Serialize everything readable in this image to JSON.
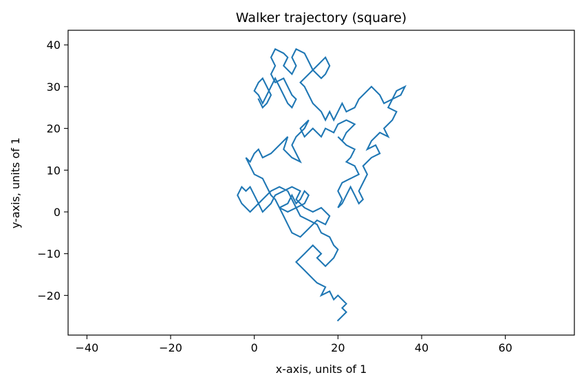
{
  "chart_data": {
    "type": "line",
    "title": "Walker trajectory (square)",
    "xlabel": "x-axis, units of 1",
    "ylabel": "y-axis, units of 1",
    "xlim": [
      -44.5,
      76.5
    ],
    "ylim": [
      -29.5,
      43.5
    ],
    "xticks": [
      -40,
      -20,
      0,
      20,
      40,
      60
    ],
    "yticks": [
      -20,
      -10,
      0,
      10,
      20,
      30,
      40
    ],
    "xtick_labels": [
      "−40",
      "−20",
      "0",
      "20",
      "40",
      "60"
    ],
    "ytick_labels": [
      "−20",
      "−10",
      "0",
      "10",
      "20",
      "30",
      "40"
    ],
    "grid": false,
    "colors": {
      "line": "#1f77b4",
      "axes": "#000000",
      "background": "#ffffff"
    },
    "series": [
      {
        "name": "",
        "points": [
          [
            20,
            -26
          ],
          [
            22,
            -24
          ],
          [
            21,
            -23
          ],
          [
            22,
            -22
          ],
          [
            21,
            -21
          ],
          [
            20,
            -20
          ],
          [
            19,
            -21
          ],
          [
            18,
            -19
          ],
          [
            16,
            -20
          ],
          [
            17,
            -18
          ],
          [
            15,
            -17
          ],
          [
            14,
            -16
          ],
          [
            12,
            -14
          ],
          [
            10,
            -12
          ],
          [
            12,
            -10
          ],
          [
            14,
            -8
          ],
          [
            16,
            -10
          ],
          [
            15,
            -11
          ],
          [
            17,
            -13
          ],
          [
            19,
            -11
          ],
          [
            20,
            -9
          ],
          [
            19,
            -8
          ],
          [
            18,
            -6
          ],
          [
            16,
            -5
          ],
          [
            15,
            -3
          ],
          [
            13,
            -2
          ],
          [
            11,
            -1
          ],
          [
            10,
            1
          ],
          [
            9,
            3
          ],
          [
            8,
            5
          ],
          [
            6,
            6
          ],
          [
            4,
            5
          ],
          [
            2,
            3
          ],
          [
            0,
            1
          ],
          [
            -1,
            0
          ],
          [
            -3,
            2
          ],
          [
            -4,
            4
          ],
          [
            -3,
            6
          ],
          [
            -2,
            5
          ],
          [
            -1,
            6
          ],
          [
            0,
            4
          ],
          [
            1,
            2
          ],
          [
            2,
            0
          ],
          [
            3,
            1
          ],
          [
            4,
            2
          ],
          [
            5,
            4
          ],
          [
            7,
            5
          ],
          [
            9,
            6
          ],
          [
            11,
            5
          ],
          [
            10,
            3
          ],
          [
            12,
            1
          ],
          [
            14,
            0
          ],
          [
            16,
            1
          ],
          [
            18,
            -1
          ],
          [
            17,
            -3
          ],
          [
            15,
            -2
          ],
          [
            13,
            -4
          ],
          [
            11,
            -6
          ],
          [
            9,
            -5
          ],
          [
            8,
            -3
          ],
          [
            7,
            -1
          ],
          [
            6,
            1
          ],
          [
            8,
            2
          ],
          [
            9,
            4
          ],
          [
            10,
            2
          ],
          [
            11,
            3
          ],
          [
            12,
            5
          ],
          [
            13,
            4
          ],
          [
            12,
            2
          ],
          [
            10,
            1
          ],
          [
            8,
            0
          ],
          [
            6,
            1
          ],
          [
            5,
            3
          ],
          [
            4,
            4
          ],
          [
            3,
            6
          ],
          [
            2,
            8
          ],
          [
            0,
            9
          ],
          [
            -1,
            11
          ],
          [
            -2,
            13
          ],
          [
            -1,
            12
          ],
          [
            0,
            14
          ],
          [
            1,
            15
          ],
          [
            2,
            13
          ],
          [
            4,
            14
          ],
          [
            6,
            16
          ],
          [
            8,
            18
          ],
          [
            7,
            15
          ],
          [
            9,
            13
          ],
          [
            11,
            12
          ],
          [
            10,
            14
          ],
          [
            9,
            16
          ],
          [
            10,
            18
          ],
          [
            12,
            20
          ],
          [
            13,
            22
          ],
          [
            11,
            20
          ],
          [
            12,
            18
          ],
          [
            14,
            20
          ],
          [
            16,
            18
          ],
          [
            17,
            20
          ],
          [
            19,
            19
          ],
          [
            20,
            21
          ],
          [
            22,
            22
          ],
          [
            24,
            21
          ],
          [
            22,
            19
          ],
          [
            21,
            17
          ],
          [
            20,
            18
          ],
          [
            22,
            16
          ],
          [
            24,
            15
          ],
          [
            23,
            13
          ],
          [
            22,
            12
          ],
          [
            24,
            11
          ],
          [
            25,
            9
          ],
          [
            23,
            8
          ],
          [
            21,
            7
          ],
          [
            20,
            5
          ],
          [
            21,
            3
          ],
          [
            20,
            1
          ],
          [
            21,
            2
          ],
          [
            22,
            4
          ],
          [
            23,
            6
          ],
          [
            24,
            4
          ],
          [
            25,
            2
          ],
          [
            26,
            3
          ],
          [
            25,
            5
          ],
          [
            26,
            7
          ],
          [
            27,
            9
          ],
          [
            26,
            11
          ],
          [
            28,
            13
          ],
          [
            30,
            14
          ],
          [
            29,
            16
          ],
          [
            27,
            15
          ],
          [
            28,
            17
          ],
          [
            30,
            19
          ],
          [
            32,
            18
          ],
          [
            31,
            20
          ],
          [
            33,
            22
          ],
          [
            34,
            24
          ],
          [
            32,
            25
          ],
          [
            33,
            27
          ],
          [
            35,
            28
          ],
          [
            36,
            30
          ],
          [
            34,
            29
          ],
          [
            33,
            27
          ],
          [
            31,
            26
          ],
          [
            30,
            28
          ],
          [
            28,
            30
          ],
          [
            27,
            29
          ],
          [
            25,
            27
          ],
          [
            24,
            25
          ],
          [
            22,
            24
          ],
          [
            21,
            26
          ],
          [
            20,
            24
          ],
          [
            19,
            22
          ],
          [
            18,
            24
          ],
          [
            17,
            22
          ],
          [
            16,
            24
          ],
          [
            14,
            26
          ],
          [
            13,
            28
          ],
          [
            12,
            30
          ],
          [
            11,
            31
          ],
          [
            13,
            33
          ],
          [
            15,
            35
          ],
          [
            17,
            37
          ],
          [
            18,
            35
          ],
          [
            17,
            33
          ],
          [
            16,
            32
          ],
          [
            14,
            34
          ],
          [
            13,
            36
          ],
          [
            12,
            38
          ],
          [
            10,
            39
          ],
          [
            9,
            37
          ],
          [
            10,
            35
          ],
          [
            9,
            33
          ],
          [
            7,
            35
          ],
          [
            8,
            37
          ],
          [
            7,
            38
          ],
          [
            5,
            39
          ],
          [
            4,
            37
          ],
          [
            5,
            35
          ],
          [
            4,
            33
          ],
          [
            5,
            31
          ],
          [
            7,
            32
          ],
          [
            8,
            30
          ],
          [
            9,
            28
          ],
          [
            10,
            27
          ],
          [
            9,
            25
          ],
          [
            8,
            26
          ],
          [
            7,
            28
          ],
          [
            6,
            30
          ],
          [
            5,
            32
          ],
          [
            4,
            30
          ],
          [
            3,
            28
          ],
          [
            2,
            26
          ],
          [
            1,
            28
          ],
          [
            0,
            29
          ],
          [
            1,
            31
          ],
          [
            2,
            32
          ],
          [
            3,
            30
          ],
          [
            4,
            28
          ],
          [
            3,
            26
          ],
          [
            2,
            25
          ],
          [
            1,
            27
          ]
        ]
      }
    ]
  }
}
